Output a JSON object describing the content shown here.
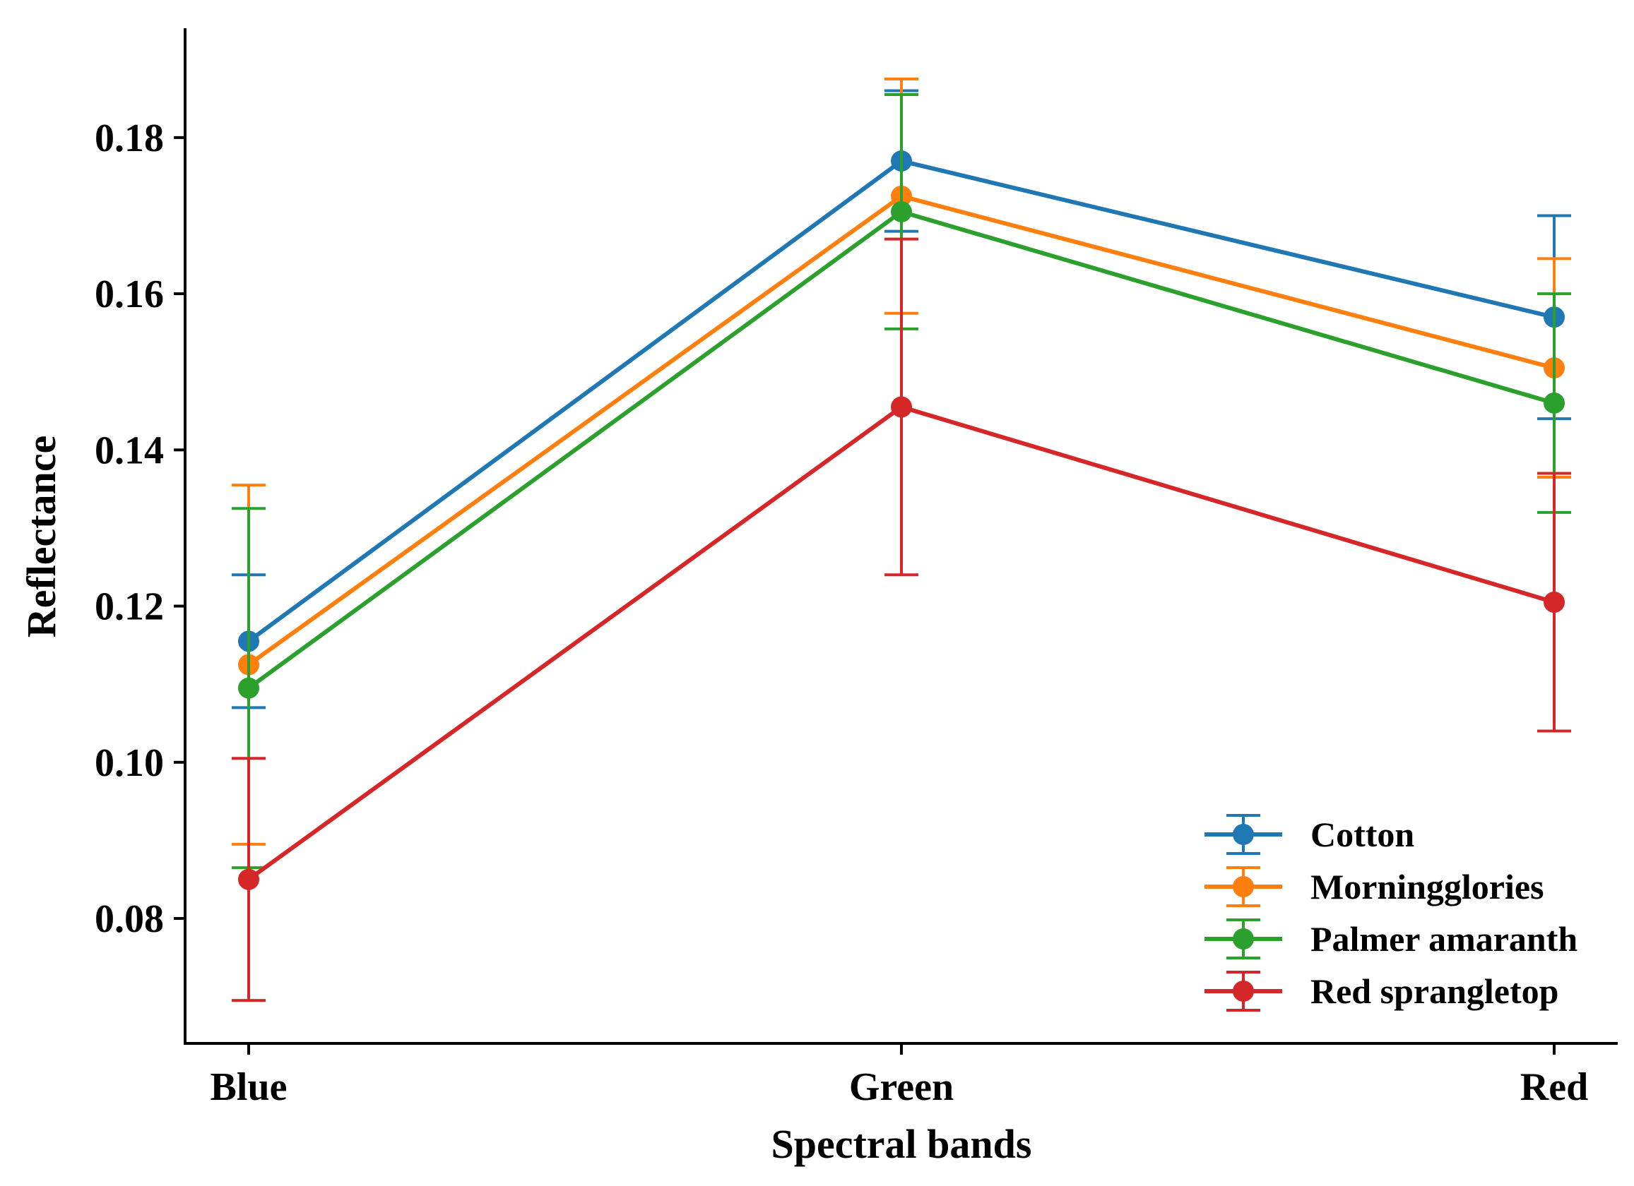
{
  "chart_data": {
    "type": "line",
    "title": "",
    "xlabel": "Spectral bands",
    "ylabel": "Reflectance",
    "categories": [
      "Blue",
      "Green",
      "Red"
    ],
    "ylim": [
      0.064,
      0.194
    ],
    "yticks": [
      0.08,
      0.1,
      0.12,
      0.14,
      0.16,
      0.18
    ],
    "ytick_labels": [
      "0.08",
      "0.10",
      "0.12",
      "0.14",
      "0.16",
      "0.18"
    ],
    "grid": false,
    "legend_position": "lower-right",
    "series": [
      {
        "name": "Cotton",
        "color": "#1f77b4",
        "values": [
          0.1155,
          0.177,
          0.157
        ],
        "errors": [
          0.0085,
          0.009,
          0.013
        ]
      },
      {
        "name": "Morningglories",
        "color": "#ff7f0e",
        "values": [
          0.1125,
          0.1725,
          0.1505
        ],
        "errors": [
          0.023,
          0.015,
          0.014
        ]
      },
      {
        "name": "Palmer amaranth",
        "color": "#2ca02c",
        "values": [
          0.1095,
          0.1705,
          0.146
        ],
        "errors": [
          0.023,
          0.015,
          0.014
        ]
      },
      {
        "name": "Red sprangletop",
        "color": "#d62728",
        "values": [
          0.085,
          0.1455,
          0.1205
        ],
        "errors": [
          0.0155,
          0.0215,
          0.0165
        ]
      }
    ]
  }
}
